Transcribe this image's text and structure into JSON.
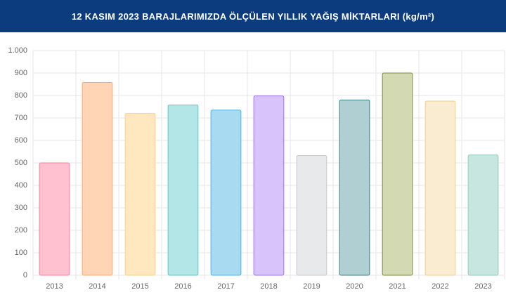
{
  "chart_data": {
    "type": "bar",
    "title": "12 KASIM 2023 BARAJLARIMIZDA ÖLÇÜLEN YILLIK YAĞIŞ MİKTARLARI (kg/m²)",
    "categories": [
      "2013",
      "2014",
      "2015",
      "2016",
      "2017",
      "2018",
      "2019",
      "2020",
      "2021",
      "2022",
      "2023"
    ],
    "values": [
      500,
      858,
      720,
      758,
      735,
      798,
      533,
      780,
      900,
      775,
      535
    ],
    "colors": [
      "#ffc1cf",
      "#ffd5b5",
      "#ffe8c0",
      "#b3e6e6",
      "#a8dbf2",
      "#d8c4fb",
      "#e8e9eb",
      "#b0cfd3",
      "#d3d9b3",
      "#faecd0",
      "#c7e6df"
    ],
    "border_colors": [
      "#ff7f9c",
      "#ffaa6a",
      "#ffcf7a",
      "#5cc7c7",
      "#4ab4e6",
      "#9d74f0",
      "#c7c9cc",
      "#3b7e86",
      "#7a8a3a",
      "#f0cf8a",
      "#8fcbbd"
    ],
    "ylim": [
      0,
      1000
    ],
    "yticks": [
      0,
      100,
      200,
      300,
      400,
      500,
      600,
      700,
      800,
      900,
      {
        "value": 1000,
        "label": "1.000"
      }
    ],
    "grid": true
  }
}
